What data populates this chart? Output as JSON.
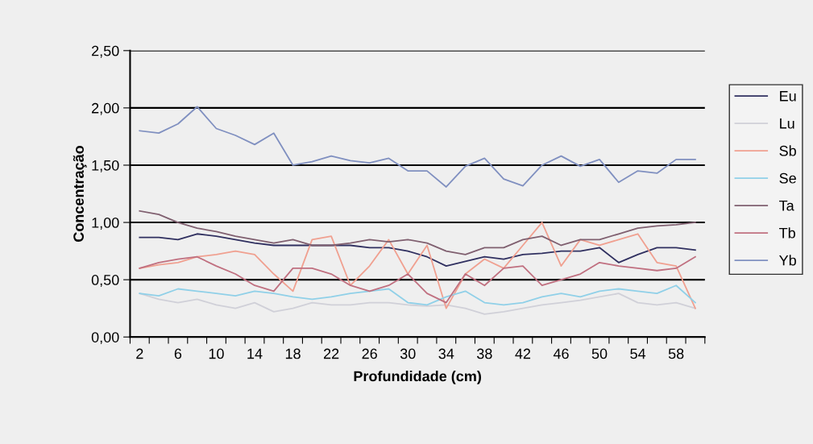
{
  "chart_data": {
    "type": "line",
    "xlabel": "Profundidade (cm)",
    "ylabel": "Concentração",
    "categories": [
      "2",
      null,
      "6",
      null,
      "10",
      null,
      "14",
      null,
      "18",
      null,
      "22",
      null,
      "26",
      null,
      "30",
      null,
      "34",
      null,
      "38",
      null,
      "42",
      null,
      "46",
      null,
      "50",
      null,
      "54",
      null,
      "58",
      null
    ],
    "ylim": [
      0,
      2.5
    ],
    "yticks": [
      {
        "value": 0,
        "label": "0,00"
      },
      {
        "value": 0.5,
        "label": "0,50"
      },
      {
        "value": 1,
        "label": "1,00"
      },
      {
        "value": 1.5,
        "label": "1,50"
      },
      {
        "value": 2,
        "label": "2,00"
      },
      {
        "value": 2.5,
        "label": "2,50"
      }
    ],
    "grid": "y",
    "legend": "right",
    "marker": "none",
    "line_style": "solid",
    "series": [
      {
        "name": "Eu",
        "color": "#303060",
        "values": [
          0.87,
          0.87,
          0.85,
          0.9,
          0.88,
          0.85,
          0.82,
          0.8,
          0.8,
          0.8,
          0.8,
          0.8,
          0.78,
          0.78,
          0.75,
          0.7,
          0.62,
          0.66,
          0.7,
          0.68,
          0.72,
          0.73,
          0.75,
          0.75,
          0.78,
          0.65,
          0.72,
          0.78,
          0.78,
          0.76
        ]
      },
      {
        "name": "Lu",
        "color": "#d0d0d8",
        "values": [
          0.38,
          0.33,
          0.3,
          0.33,
          0.28,
          0.25,
          0.3,
          0.22,
          0.25,
          0.3,
          0.28,
          0.28,
          0.3,
          0.3,
          0.28,
          0.27,
          0.28,
          0.25,
          0.2,
          0.22,
          0.25,
          0.28,
          0.3,
          0.32,
          0.35,
          0.38,
          0.3,
          0.28,
          0.3,
          0.25
        ]
      },
      {
        "name": "Sb",
        "color": "#f0a090",
        "values": [
          0.6,
          0.63,
          0.65,
          0.7,
          0.72,
          0.75,
          0.72,
          0.55,
          0.4,
          0.85,
          0.88,
          0.45,
          0.62,
          0.85,
          0.55,
          0.8,
          0.25,
          0.55,
          0.68,
          0.6,
          0.8,
          1.0,
          0.62,
          0.85,
          0.8,
          0.85,
          0.9,
          0.65,
          0.62,
          0.25
        ]
      },
      {
        "name": "Se",
        "color": "#90d0e8",
        "values": [
          0.38,
          0.36,
          0.42,
          0.4,
          0.38,
          0.36,
          0.4,
          0.38,
          0.35,
          0.33,
          0.35,
          0.38,
          0.4,
          0.42,
          0.3,
          0.28,
          0.35,
          0.4,
          0.3,
          0.28,
          0.3,
          0.35,
          0.38,
          0.35,
          0.4,
          0.42,
          0.4,
          0.38,
          0.45,
          0.3
        ]
      },
      {
        "name": "Ta",
        "color": "#806070",
        "values": [
          1.1,
          1.07,
          1.0,
          0.95,
          0.92,
          0.88,
          0.85,
          0.82,
          0.85,
          0.8,
          0.8,
          0.82,
          0.85,
          0.83,
          0.85,
          0.82,
          0.75,
          0.72,
          0.78,
          0.78,
          0.85,
          0.88,
          0.8,
          0.85,
          0.85,
          0.9,
          0.95,
          0.97,
          0.98,
          1.0
        ]
      },
      {
        "name": "Tb",
        "color": "#c07080",
        "values": [
          0.6,
          0.65,
          0.68,
          0.7,
          0.62,
          0.55,
          0.45,
          0.4,
          0.6,
          0.6,
          0.55,
          0.45,
          0.4,
          0.45,
          0.55,
          0.38,
          0.3,
          0.55,
          0.45,
          0.6,
          0.62,
          0.45,
          0.5,
          0.55,
          0.65,
          0.62,
          0.6,
          0.58,
          0.6,
          0.7
        ]
      },
      {
        "name": "Yb",
        "color": "#8090c0",
        "values": [
          1.8,
          1.78,
          1.86,
          2.01,
          1.82,
          1.76,
          1.68,
          1.78,
          1.5,
          1.53,
          1.58,
          1.54,
          1.52,
          1.56,
          1.45,
          1.45,
          1.31,
          1.49,
          1.56,
          1.38,
          1.32,
          1.5,
          1.58,
          1.49,
          1.55,
          1.35,
          1.45,
          1.43,
          1.55,
          1.55
        ]
      }
    ]
  }
}
